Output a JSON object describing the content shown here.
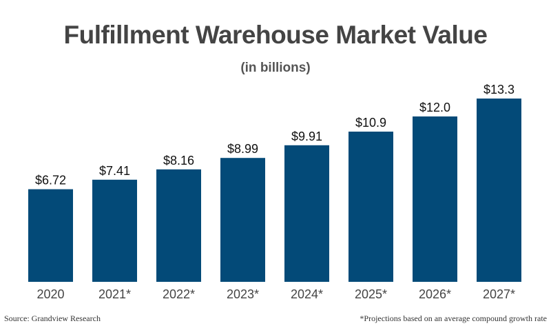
{
  "chart_data": {
    "type": "bar",
    "title": "Fulfillment Warehouse Market Value",
    "subtitle": "(in billions)",
    "categories": [
      "2020",
      "2021*",
      "2022*",
      "2023*",
      "2024*",
      "2025*",
      "2026*",
      "2027*"
    ],
    "values": [
      6.72,
      7.41,
      8.16,
      8.99,
      9.91,
      10.9,
      12.0,
      13.3
    ],
    "data_labels": [
      "$6.72",
      "$7.41",
      "$8.16",
      "$8.99",
      "$9.91",
      "$10.9",
      "$12.0",
      "$13.3"
    ],
    "xlabel": "",
    "ylabel": "",
    "ylim": [
      0,
      13.3
    ],
    "grid": false,
    "bar_color": "#034a78",
    "text_color": "#444444"
  },
  "footer": {
    "source": "Source: Grandview Research",
    "footnote": "*Projections based on an average compound growth rate"
  }
}
